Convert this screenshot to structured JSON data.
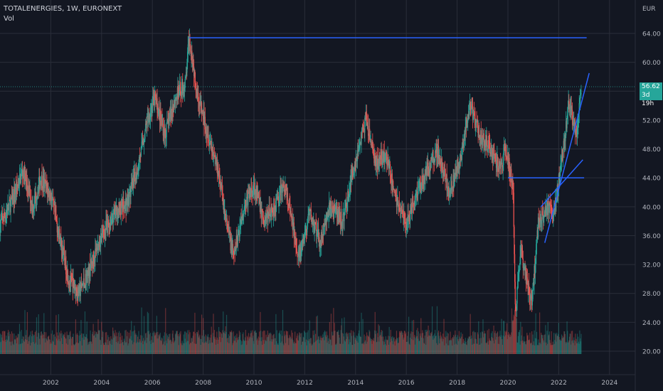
{
  "header": {
    "symbol_line": "TOTALENERGIES, 1W, EURONEXT",
    "indicator_label": "Vol"
  },
  "price_axis": {
    "currency": "EUR",
    "ticks": [
      "64.00",
      "60.00",
      "56.00",
      "52.00",
      "48.00",
      "44.00",
      "40.00",
      "36.00",
      "32.00",
      "28.00",
      "24.00",
      "20.00"
    ]
  },
  "time_axis": {
    "ticks": [
      "2002",
      "2004",
      "2006",
      "2008",
      "2010",
      "2012",
      "2014",
      "2016",
      "2018",
      "2020",
      "2022",
      "2024"
    ]
  },
  "last_price": {
    "value": "56.62",
    "countdown": "3d 19h"
  },
  "colors": {
    "background": "#131722",
    "up": "#26a69a",
    "down": "#ef5350",
    "trendline": "#2962ff",
    "grid": "#2a2e39",
    "text": "#b2b5be"
  },
  "chart_data": {
    "type": "candlestick",
    "x_range": [
      2000.0,
      2025.0
    ],
    "y_range": [
      16.8,
      66.0
    ],
    "price_path": [
      [
        2000.0,
        37.5
      ],
      [
        2000.5,
        41
      ],
      [
        2000.9,
        45
      ],
      [
        2001.3,
        40
      ],
      [
        2001.6,
        44
      ],
      [
        2002.0,
        41.5
      ],
      [
        2002.4,
        35
      ],
      [
        2002.7,
        30
      ],
      [
        2003.1,
        28
      ],
      [
        2003.5,
        31
      ],
      [
        2004.0,
        36
      ],
      [
        2004.5,
        39
      ],
      [
        2005.0,
        40.5
      ],
      [
        2005.4,
        45
      ],
      [
        2005.8,
        52
      ],
      [
        2006.1,
        55
      ],
      [
        2006.5,
        50
      ],
      [
        2006.9,
        55
      ],
      [
        2007.3,
        57
      ],
      [
        2007.45,
        63.5
      ],
      [
        2007.8,
        55
      ],
      [
        2008.2,
        50
      ],
      [
        2008.6,
        45
      ],
      [
        2008.9,
        38
      ],
      [
        2009.2,
        33
      ],
      [
        2009.6,
        40
      ],
      [
        2010.0,
        43
      ],
      [
        2010.4,
        38
      ],
      [
        2010.8,
        40
      ],
      [
        2011.2,
        43
      ],
      [
        2011.6,
        36
      ],
      [
        2011.8,
        33
      ],
      [
        2012.2,
        39
      ],
      [
        2012.6,
        35
      ],
      [
        2013.0,
        40
      ],
      [
        2013.5,
        38
      ],
      [
        2013.9,
        45
      ],
      [
        2014.4,
        52
      ],
      [
        2014.8,
        46
      ],
      [
        2015.2,
        47
      ],
      [
        2015.6,
        41
      ],
      [
        2016.0,
        37.5
      ],
      [
        2016.4,
        42
      ],
      [
        2016.8,
        45
      ],
      [
        2017.2,
        48
      ],
      [
        2017.7,
        42
      ],
      [
        2018.1,
        46
      ],
      [
        2018.5,
        54
      ],
      [
        2018.9,
        50
      ],
      [
        2019.3,
        48
      ],
      [
        2019.7,
        45
      ],
      [
        2019.9,
        48
      ],
      [
        2020.2,
        43
      ],
      [
        2020.3,
        25
      ],
      [
        2020.5,
        34
      ],
      [
        2020.8,
        29
      ],
      [
        2020.95,
        27
      ],
      [
        2021.2,
        38
      ],
      [
        2021.5,
        40
      ],
      [
        2021.8,
        39
      ],
      [
        2022.1,
        46
      ],
      [
        2022.4,
        54
      ],
      [
        2022.7,
        50
      ],
      [
        2022.9,
        56.6
      ]
    ],
    "annotations": [
      {
        "type": "horizontal",
        "label": "",
        "y": 63.4,
        "x": [
          2007.45,
          2023.1
        ]
      },
      {
        "type": "horizontal",
        "label": "",
        "y": 44.0,
        "x": [
          2020.0,
          2023.0
        ]
      },
      {
        "type": "trend",
        "label": "",
        "from": [
          2021.3,
          40.0
        ],
        "to": [
          2022.95,
          46.5
        ]
      },
      {
        "type": "trend",
        "label": "",
        "from": [
          2021.45,
          35.0
        ],
        "to": [
          2023.2,
          58.5
        ]
      },
      {
        "type": "last-price",
        "label": "",
        "y": 56.62
      }
    ]
  }
}
